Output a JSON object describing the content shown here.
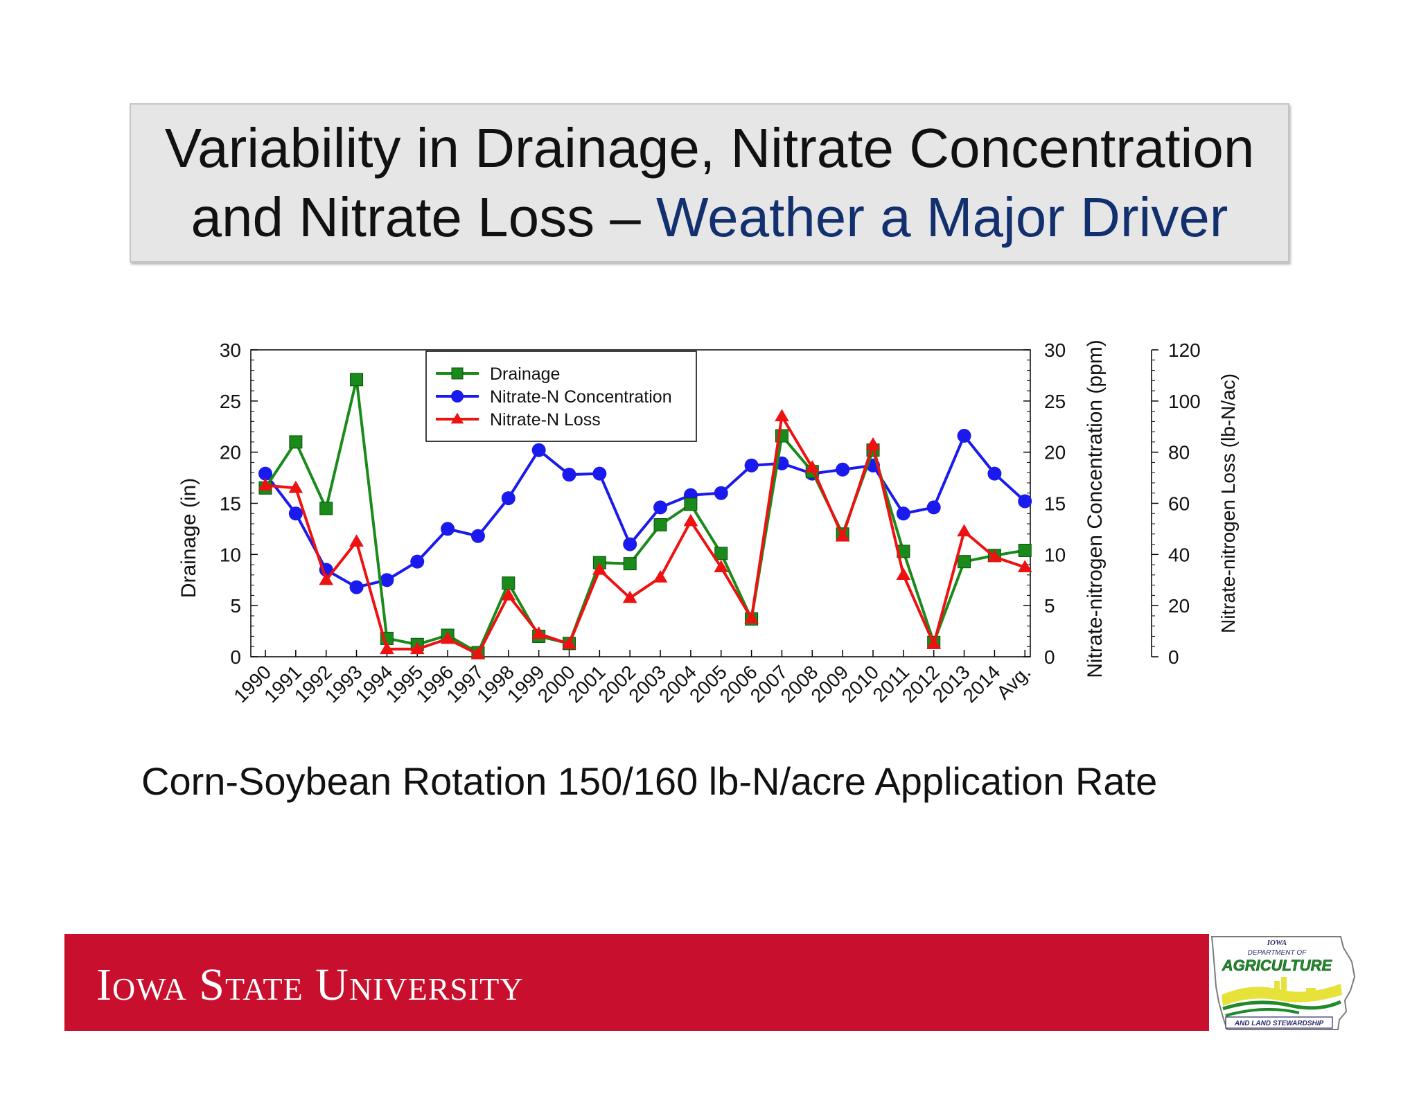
{
  "title": {
    "line1": "Variability in Drainage, Nitrate Concentration",
    "line2_prefix": "and Nitrate Loss – ",
    "line2_accent": "Weather a Major Driver"
  },
  "subtitle": "Corn-Soybean Rotation 150/160 lb-N/acre Application Rate",
  "footer": {
    "university": "Iowa State University",
    "partner_logo": {
      "line1": "IOWA",
      "line2": "DEPARTMENT OF",
      "line3": "AGRICULTURE",
      "line4": "AND LAND STEWARDSHIP"
    }
  },
  "colors": {
    "drainage": "#1a8a1a",
    "concentration": "#1a1aee",
    "loss": "#ee1111",
    "footer": "#c8102e",
    "title_accent": "#12306e"
  },
  "chart_data": {
    "type": "line",
    "categories": [
      "1990",
      "1991",
      "1992",
      "1993",
      "1994",
      "1995",
      "1996",
      "1997",
      "1998",
      "1999",
      "2000",
      "2001",
      "2002",
      "2003",
      "2004",
      "2005",
      "2006",
      "2007",
      "2008",
      "2009",
      "2010",
      "2011",
      "2012",
      "2013",
      "2014",
      "Avg."
    ],
    "series": [
      {
        "name": "Drainage",
        "marker": "square",
        "axis": "left",
        "values": [
          16.5,
          21.0,
          14.5,
          27.1,
          1.8,
          1.2,
          2.1,
          0.4,
          7.2,
          2.0,
          1.3,
          9.2,
          9.1,
          12.9,
          14.9,
          10.1,
          3.7,
          21.6,
          18.1,
          12.0,
          20.2,
          10.3,
          1.4,
          9.3,
          9.9,
          10.4
        ]
      },
      {
        "name": "Nitrate-N Concentration",
        "marker": "circle",
        "axis": "right1",
        "values": [
          17.9,
          14.0,
          8.5,
          6.8,
          7.5,
          9.3,
          12.5,
          11.8,
          15.5,
          20.2,
          17.8,
          17.9,
          11.0,
          14.6,
          15.8,
          16.0,
          18.7,
          18.9,
          17.9,
          18.3,
          18.7,
          14.0,
          14.6,
          21.6,
          17.9,
          15.2
        ]
      },
      {
        "name": "Nitrate-N Loss",
        "marker": "triangle",
        "axis": "right2",
        "values": [
          67,
          66,
          30,
          45,
          3,
          3,
          7,
          1,
          24,
          9,
          5,
          34,
          23,
          31,
          53,
          35,
          15,
          94,
          74,
          47,
          83,
          32,
          5,
          49,
          39,
          35
        ]
      }
    ],
    "axes": {
      "left": {
        "label": "Drainage (in)",
        "range": [
          0,
          30
        ],
        "ticks": [
          "0",
          "5",
          "10",
          "15",
          "20",
          "25",
          "30"
        ]
      },
      "right1": {
        "label": "Nitrate-nitrogen Concentration (ppm)",
        "range": [
          0,
          30
        ],
        "ticks": [
          "0",
          "5",
          "10",
          "15",
          "20",
          "25",
          "30"
        ]
      },
      "right2": {
        "label": "Nitrate-nitrogen Loss (lb-N/ac)",
        "range": [
          0,
          120
        ],
        "ticks": [
          "0",
          "20",
          "40",
          "60",
          "80",
          "100",
          "120"
        ]
      }
    },
    "legend": {
      "position": "top-left",
      "entries": [
        "Drainage",
        "Nitrate-N Concentration",
        "Nitrate-N Loss"
      ]
    },
    "grid": false
  }
}
